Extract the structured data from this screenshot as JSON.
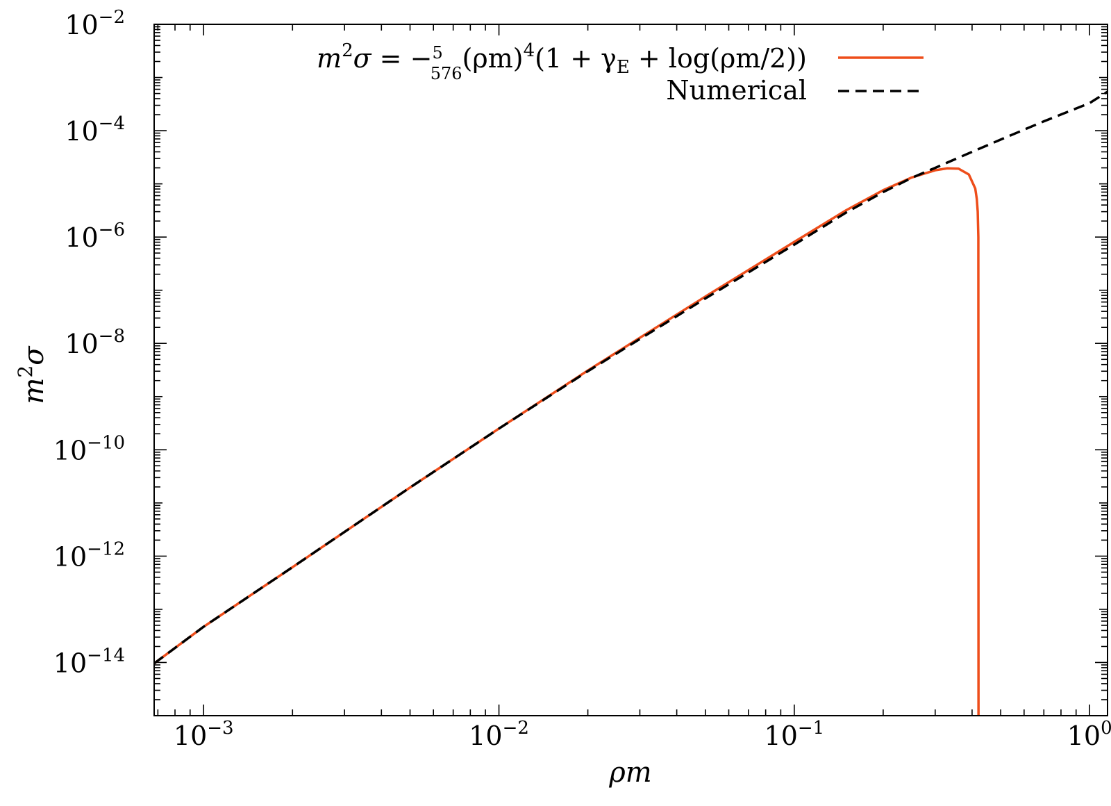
{
  "chart_data": {
    "type": "line",
    "x_scale": "log",
    "y_scale": "log",
    "xlim": [
      0.00068,
      1.15
    ],
    "ylim": [
      1e-15,
      0.01
    ],
    "x_ticks": [
      {
        "value": 0.001,
        "base": "10",
        "exp": "−3"
      },
      {
        "value": 0.01,
        "base": "10",
        "exp": "−2"
      },
      {
        "value": 0.1,
        "base": "10",
        "exp": "−1"
      },
      {
        "value": 1,
        "base": "10",
        "exp": "0"
      }
    ],
    "y_ticks": [
      {
        "value": 1e-14,
        "base": "10",
        "exp": "−14"
      },
      {
        "value": 1e-12,
        "base": "10",
        "exp": "−12"
      },
      {
        "value": 1e-10,
        "base": "10",
        "exp": "−10"
      },
      {
        "value": 1e-08,
        "base": "10",
        "exp": "−8"
      },
      {
        "value": 1e-06,
        "base": "10",
        "exp": "−6"
      },
      {
        "value": 0.0001,
        "base": "10",
        "exp": "−4"
      },
      {
        "value": 0.01,
        "base": "10",
        "exp": "−2"
      }
    ],
    "xlabel": "ρm",
    "ylabel": {
      "base": "m",
      "sup": "2",
      "rest": "σ"
    },
    "legend_position": "top-right",
    "series": [
      {
        "name": "m²σ = −(5/576)(ρm)⁴(1 + γE + log(ρm/2))",
        "color": "#ee4d1a",
        "style": "solid",
        "x": [
          0.00068,
          0.001,
          0.002,
          0.005,
          0.01,
          0.02,
          0.05,
          0.1,
          0.15,
          0.2,
          0.25,
          0.3,
          0.33,
          0.36,
          0.39,
          0.41,
          0.415,
          0.418,
          0.42,
          0.4205
        ],
        "y": [
          9.6e-15,
          4.7e-14,
          6.2e-13,
          1.95e-11,
          2.5e-10,
          3.1e-09,
          7.6e-08,
          8.1e-07,
          3.2e-06,
          7.6e-06,
          1.32e-05,
          1.8e-05,
          1.96e-05,
          1.93e-05,
          1.5e-05,
          8.2e-06,
          5.2e-06,
          3e-06,
          1e-06,
          1e-15
        ]
      },
      {
        "name": "Numerical",
        "color": "#000000",
        "style": "dashed",
        "x": [
          0.00068,
          0.001,
          0.002,
          0.005,
          0.01,
          0.02,
          0.05,
          0.1,
          0.15,
          0.2,
          0.25,
          0.3,
          0.4,
          0.5,
          0.7,
          1.0,
          1.15
        ],
        "y": [
          9.6e-15,
          4.7e-14,
          6.2e-13,
          1.95e-11,
          2.5e-10,
          3e-09,
          7e-08,
          7.2e-07,
          2.9e-06,
          7e-06,
          1.3e-05,
          2e-05,
          4e-05,
          6.8e-05,
          0.00015,
          0.00033,
          0.00054
        ]
      }
    ]
  },
  "legend": {
    "entries": [
      {
        "label_parts": {
          "lhs_m": "m",
          "lhs_sup": "2",
          "lhs_sigma": "σ",
          "eq": " = −",
          "num": "5",
          "den": "576",
          "body1": "(ρm)",
          "body_sup": "4",
          "body2": "(1 + γ",
          "sub": "E",
          "body3": " + log(ρm/2))"
        },
        "color": "#ee4d1a",
        "style": "solid"
      },
      {
        "label": "Numerical",
        "color": "#000000",
        "style": "dashed"
      }
    ]
  }
}
